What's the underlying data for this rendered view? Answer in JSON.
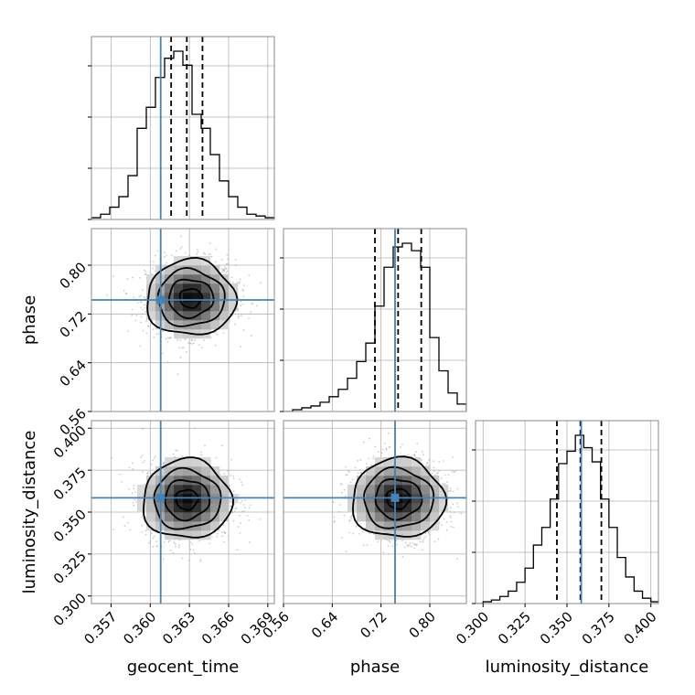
{
  "chart_data": {
    "type": "corner",
    "parameters": [
      {
        "key": "geocent_time",
        "label": "geocent_time",
        "range": [
          0.3555,
          0.3695
        ],
        "ticks": [
          0.357,
          0.36,
          0.363,
          0.366,
          0.369
        ],
        "tick_labels": [
          "0.357",
          "0.360",
          "0.363",
          "0.366",
          "0.369"
        ],
        "injection": 0.3608,
        "quantiles": [
          0.3616,
          0.3628,
          0.364
        ],
        "histogram": {
          "bin_edges": [
            0.3555,
            0.3562,
            0.3569,
            0.3576,
            0.3583,
            0.359,
            0.3597,
            0.3604,
            0.3611,
            0.3618,
            0.3625,
            0.3632,
            0.3639,
            0.3646,
            0.3653,
            0.366,
            0.3667,
            0.3674,
            0.3681,
            0.3688,
            0.3695
          ],
          "heights": [
            0.01,
            0.03,
            0.07,
            0.13,
            0.25,
            0.52,
            0.64,
            0.81,
            0.92,
            0.96,
            0.88,
            0.6,
            0.52,
            0.37,
            0.22,
            0.13,
            0.07,
            0.03,
            0.02,
            0.01
          ]
        }
      },
      {
        "key": "phase",
        "label": "phase",
        "range": [
          0.56,
          0.86
        ],
        "ticks": [
          0.56,
          0.64,
          0.72,
          0.8
        ],
        "tick_labels": [
          "0.56",
          "0.64",
          "0.72",
          "0.80"
        ],
        "injection": 0.743,
        "quantiles": [
          0.71,
          0.748,
          0.786
        ],
        "histogram": {
          "bin_edges": [
            0.56,
            0.575,
            0.59,
            0.605,
            0.62,
            0.635,
            0.65,
            0.665,
            0.68,
            0.695,
            0.71,
            0.725,
            0.74,
            0.755,
            0.77,
            0.785,
            0.8,
            0.815,
            0.83,
            0.845,
            0.86
          ],
          "heights": [
            0.0,
            0.01,
            0.02,
            0.03,
            0.05,
            0.08,
            0.12,
            0.18,
            0.27,
            0.37,
            0.57,
            0.78,
            0.89,
            0.91,
            0.87,
            0.78,
            0.4,
            0.22,
            0.1,
            0.04
          ]
        }
      },
      {
        "key": "luminosity_distance",
        "label": "luminosity_distance",
        "range": [
          0.2955,
          0.4045
        ],
        "ticks": [
          0.3,
          0.325,
          0.35,
          0.375,
          0.4
        ],
        "tick_labels": [
          "0.300",
          "0.325",
          "0.350",
          "0.375",
          "0.400"
        ],
        "injection": 0.3585,
        "quantiles": [
          0.344,
          0.358,
          0.3705
        ],
        "histogram": {
          "bin_edges": [
            0.2955,
            0.3,
            0.305,
            0.31,
            0.315,
            0.32,
            0.325,
            0.33,
            0.335,
            0.34,
            0.345,
            0.35,
            0.355,
            0.36,
            0.365,
            0.37,
            0.375,
            0.38,
            0.385,
            0.39,
            0.395,
            0.4,
            0.4045
          ],
          "heights": [
            0.0,
            0.01,
            0.02,
            0.04,
            0.07,
            0.12,
            0.2,
            0.33,
            0.43,
            0.59,
            0.79,
            0.86,
            0.95,
            0.88,
            0.8,
            0.59,
            0.43,
            0.26,
            0.15,
            0.07,
            0.03,
            0.01
          ]
        }
      }
    ],
    "density_2d": [
      {
        "x": "geocent_time",
        "y": "phase",
        "center": [
          0.3631,
          0.746
        ],
        "sigma": [
          0.0017,
          0.031
        ],
        "contour_levels_sigma": [
          0.5,
          1.0,
          1.5,
          2.0
        ]
      },
      {
        "x": "geocent_time",
        "y": "luminosity_distance",
        "center": [
          0.3628,
          0.3575
        ],
        "sigma": [
          0.0017,
          0.0118
        ],
        "contour_levels_sigma": [
          0.5,
          1.0,
          1.5,
          2.0
        ]
      },
      {
        "x": "phase",
        "y": "luminosity_distance",
        "center": [
          0.748,
          0.358
        ],
        "sigma": [
          0.038,
          0.0118
        ],
        "contour_levels_sigma": [
          0.5,
          1.0,
          1.5,
          2.0
        ]
      }
    ],
    "grid": true,
    "quantile_line_style": "dashed",
    "colors": {
      "histogram": "#000000",
      "quantile": "#000000",
      "injection": "#4682b4",
      "points": "#aaaaaa",
      "grid": "#b0b0b0",
      "frame": "#8a8a8a"
    }
  }
}
